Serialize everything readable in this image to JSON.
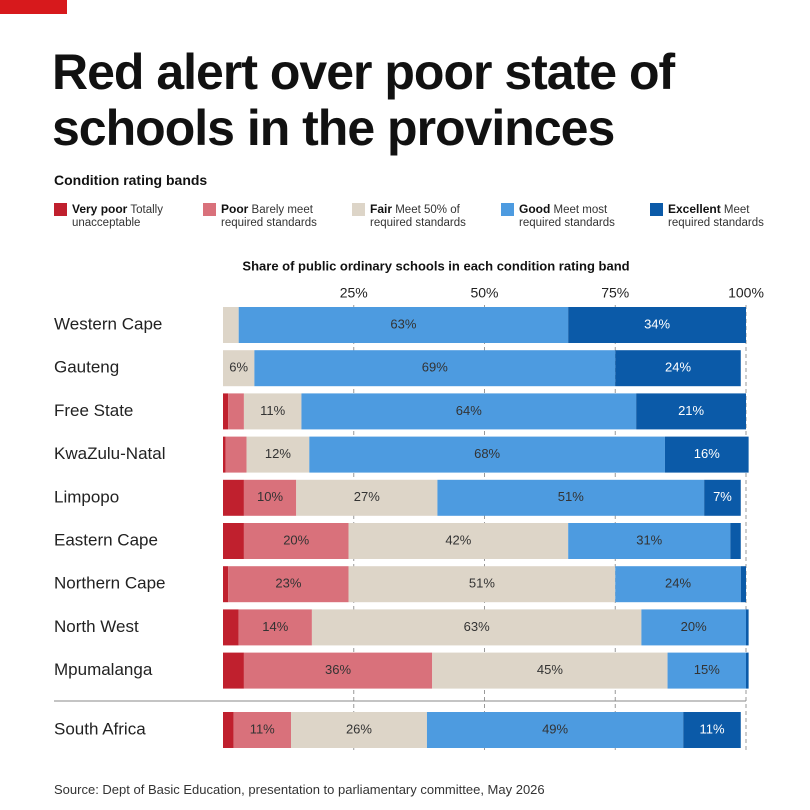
{
  "chart_data": {
    "type": "stacked-bar-horizontal",
    "title": "Red alert over poor state of schools in the provinces",
    "legend_title": "Condition rating bands",
    "xlabel": "Share of public ordinary schools in each condition rating band",
    "source": "Source: Dept of Basic Education, presentation to parliamentary committee, May 2026",
    "categories": [
      "Western Cape",
      "Gauteng",
      "Free State",
      "KwaZulu-Natal",
      "Limpopo",
      "Eastern Cape",
      "Northern Cape",
      "North West",
      "Mpumalanga",
      "South Africa"
    ],
    "xlim": [
      0,
      100
    ],
    "xticks": [
      {
        "value": 25,
        "label": "25%"
      },
      {
        "value": 50,
        "label": "50%"
      },
      {
        "value": 75,
        "label": "75%"
      },
      {
        "value": 100,
        "label": "100%"
      }
    ],
    "grid": true,
    "series": [
      {
        "name": "Very poor",
        "description": "Totally unacceptable",
        "color": "#c0202e",
        "values": [
          0,
          0,
          1,
          0.5,
          4,
          4,
          1,
          3,
          4,
          2
        ],
        "value_labels": [
          null,
          null,
          null,
          null,
          null,
          null,
          null,
          null,
          null,
          null
        ]
      },
      {
        "name": "Poor",
        "description": "Barely meet required standards",
        "color": "#d9717b",
        "values": [
          0,
          0,
          3,
          4,
          10,
          20,
          23,
          14,
          36,
          11
        ],
        "value_labels": [
          null,
          null,
          null,
          null,
          "10%",
          "20%",
          "23%",
          "14%",
          "36%",
          "11%"
        ]
      },
      {
        "name": "Fair",
        "description": "Meet 50% of required standards",
        "color": "#ddd5c8",
        "values": [
          3,
          6,
          11,
          12,
          27,
          42,
          51,
          63,
          45,
          26
        ],
        "value_labels": [
          null,
          "6%",
          "11%",
          "12%",
          "27%",
          "42%",
          "51%",
          "63%",
          "45%",
          "26%"
        ]
      },
      {
        "name": "Good",
        "description": "Meet most required standards",
        "color": "#4d9be0",
        "values": [
          63,
          69,
          64,
          68,
          51,
          31,
          24,
          20,
          15,
          49
        ],
        "value_labels": [
          "63%",
          "69%",
          "64%",
          "68%",
          "51%",
          "31%",
          "24%",
          "20%",
          "15%",
          "49%"
        ]
      },
      {
        "name": "Excellent",
        "description": "Meet required standards",
        "color": "#0b5aa8",
        "values": [
          34,
          24,
          21,
          16,
          7,
          2,
          1,
          0.5,
          0.5,
          11
        ],
        "value_labels": [
          "34%",
          "24%",
          "21%",
          "16%",
          "7%",
          null,
          null,
          null,
          null,
          "11%"
        ]
      }
    ]
  }
}
